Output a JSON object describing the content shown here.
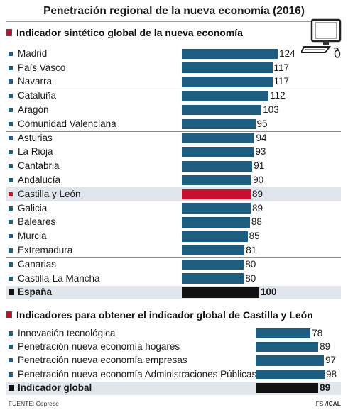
{
  "title": "Penetración regional de la nueva economía (2016)",
  "colors": {
    "bar": "#1d5d7f",
    "highlight": "#c8102e",
    "total": "#111111",
    "band": "#dfe5ea"
  },
  "icons": [
    "computer-icon"
  ],
  "chart_data": [
    {
      "type": "bar",
      "orientation": "horizontal",
      "title": "Indicador sintético global de la nueva economía",
      "categories": [
        "Madrid",
        "País Vasco",
        "Navarra",
        "Cataluña",
        "Aragón",
        "Comunidad Valenciana",
        "Asturias",
        "La Rioja",
        "Cantabria",
        "Andalucía",
        "Castilla y León",
        "Galicia",
        "Baleares",
        "Murcia",
        "Extremadura",
        "Canarias",
        "Castilla-La Mancha",
        "España"
      ],
      "values": [
        124,
        117,
        117,
        112,
        103,
        95,
        94,
        93,
        91,
        90,
        89,
        89,
        88,
        85,
        81,
        80,
        80,
        100
      ],
      "value_labels": [
        "124",
        "117",
        "117",
        "112",
        "103",
        "95",
        "94",
        "93",
        "91",
        "90",
        "89",
        "89",
        "88",
        "85",
        "81",
        "80",
        "80",
        "100"
      ],
      "highlight": "Castilla y León",
      "total": "España"
    },
    {
      "type": "bar",
      "orientation": "horizontal",
      "title": "Indicadores para obtener el indicador global de Castilla y León",
      "categories": [
        "Innovación tecnológica",
        "Penetración nueva economía hogares",
        "Penetración nueva economía empresas",
        "Penetración nueva economía Administraciones Públicas",
        "Indicador global"
      ],
      "values": [
        78,
        89,
        97,
        98,
        89
      ],
      "value_labels": [
        "78",
        "89",
        "97",
        "98",
        "89"
      ],
      "total": "Indicador global"
    }
  ],
  "footer": {
    "source": "FUENTE: Ceprece",
    "credit_fs": "FS /",
    "credit_ical": "ICAL"
  }
}
